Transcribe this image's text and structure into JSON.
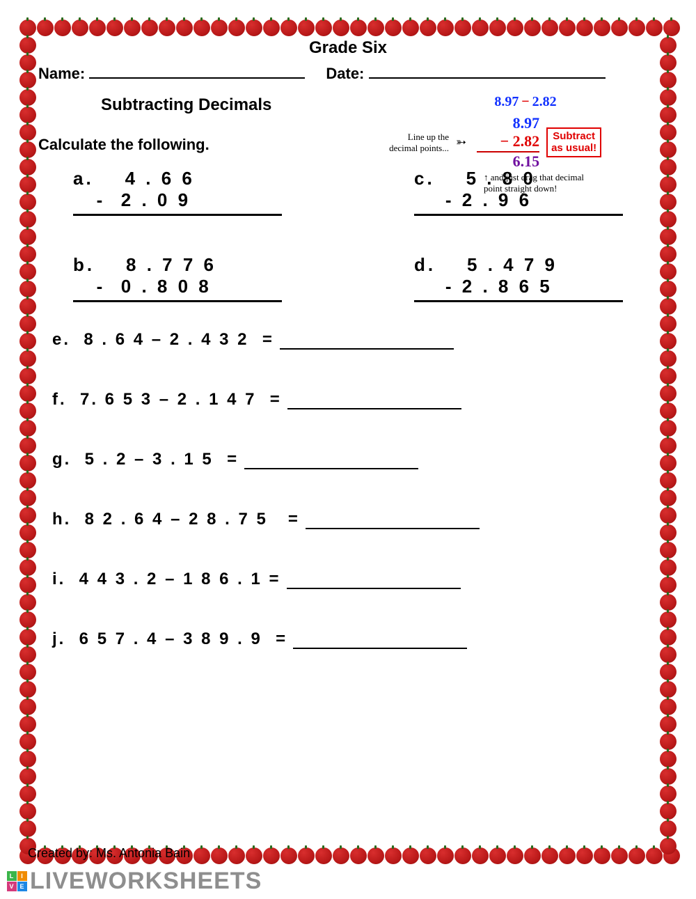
{
  "title": "Grade Six",
  "name_label": "Name:",
  "date_label": "Date:",
  "subtitle": "Subtracting Decimals",
  "instruction": "Calculate the following.",
  "example": {
    "expr_a": "8.97",
    "expr_op": "−",
    "expr_b": "2.82",
    "col_top": "8.97",
    "col_minus": "− 2.82",
    "col_result": "6.15",
    "note_left_1": "Line up the",
    "note_left_2": "decimal points...",
    "callout_1": "Subtract",
    "callout_2": "as usual!",
    "note_bottom": "and just drag that decimal\npoint straight down!"
  },
  "vertical": {
    "a": {
      "label": "a.",
      "top": "4 . 6 6",
      "bot": "-  2 . 0 9"
    },
    "b": {
      "label": "b.",
      "top": "8 . 7 7 6",
      "bot": "-  0 . 8 0 8"
    },
    "c": {
      "label": "c.",
      "top": "5 . 8 0",
      "bot": "- 2 . 9 6"
    },
    "d": {
      "label": "d.",
      "top": "5 . 4 7 9",
      "bot": "- 2 . 8 6 5"
    }
  },
  "inline": {
    "e": "e.  8 . 6 4 – 2 . 4 3 2  =",
    "f": "f.  7. 6 5 3 – 2 . 1 4 7  =",
    "g": "g.  5 . 2 – 3 . 1 5  =",
    "h": "h.  8 2 . 6 4 – 2 8 . 7 5   =",
    "i": "i.  4 4 3 . 2 – 1 8 6 . 1 =",
    "j": "j.  6 5 7 . 4 – 3 8 9 . 9  ="
  },
  "credit": "Created by: Ms. Antonia Bain",
  "watermark": "LIVEWORKSHEETS",
  "colors": {
    "apple": "#b81818",
    "blue": "#1030ff",
    "red": "#e00000",
    "purple": "#7010a0"
  },
  "badge": {
    "tl": "L",
    "tr": "I",
    "bl": "V",
    "br": "E",
    "c_tl": "#3bb54a",
    "c_tr": "#f08c00",
    "c_bl": "#d43a7b",
    "c_br": "#1e88e5"
  }
}
